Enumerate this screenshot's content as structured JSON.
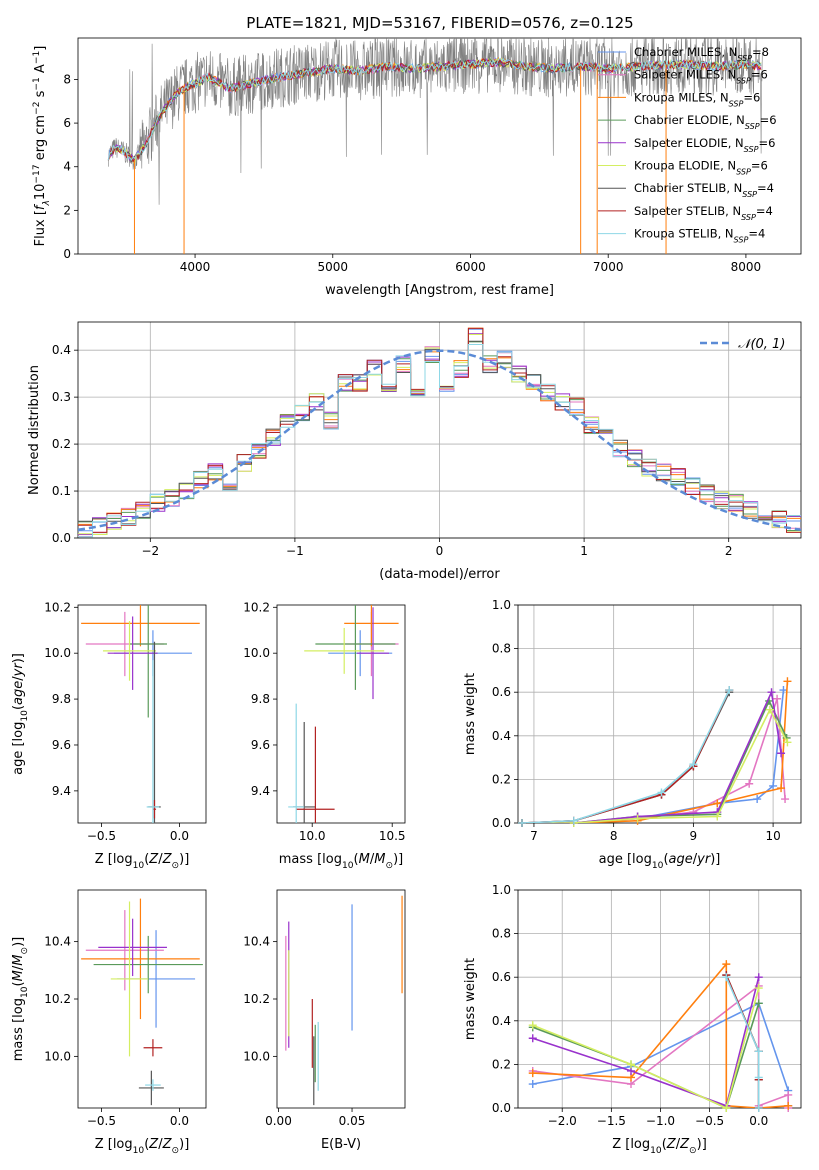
{
  "figure": {
    "title": "PLATE=1821, MJD=53167, FIBERID=0576, z=0.125"
  },
  "colors": {
    "Chabrier MILES": "#6495ed",
    "Salpeter MILES": "#e377c2",
    "Kroupa MILES": "#ff7f0e",
    "Chabrier ELODIE": "#5a9a5a",
    "Salpeter ELODIE": "#9932cc",
    "Kroupa ELODIE": "#d4ee62",
    "Chabrier STELIB": "#555555",
    "Salpeter STELIB": "#b22222",
    "Kroupa STELIB": "#8ed7e6",
    "data": "#808080",
    "normal": "#5b8bd6"
  },
  "chart_data": [
    {
      "id": "spectrum",
      "type": "line",
      "xlabel": "wavelength [Angstrom, rest frame]",
      "ylabel": "Flux [f_λ10^-17 erg cm^-2 s^-1 A^-1]",
      "xlim": [
        3150,
        8400
      ],
      "ylim": [
        0,
        9.9
      ],
      "xticks": [
        4000,
        5000,
        6000,
        7000,
        8000
      ],
      "yticks": [
        0,
        2,
        4,
        6,
        8
      ],
      "grid": false,
      "legend": "top-right",
      "data_continuum": {
        "x": [
          3370,
          3420,
          3480,
          3560,
          3640,
          3700,
          3760,
          3860,
          3950,
          4100,
          4250,
          4400,
          4600,
          4800,
          5000,
          5200,
          5400,
          5600,
          5800,
          6000,
          6200,
          6400,
          6600,
          6800,
          7000,
          7200,
          7500,
          7800,
          8000,
          8120
        ],
        "y": [
          4.5,
          4.9,
          4.7,
          4.3,
          5.0,
          5.8,
          6.5,
          7.3,
          7.7,
          8.1,
          7.6,
          7.8,
          8.1,
          8.3,
          8.5,
          8.4,
          8.6,
          8.5,
          8.6,
          8.7,
          8.8,
          8.6,
          8.5,
          8.6,
          8.5,
          8.6,
          8.7,
          8.6,
          8.7,
          8.6
        ]
      },
      "series": [
        {
          "name": "Chabrier MILES",
          "nssp": "8"
        },
        {
          "name": "Salpeter MILES",
          "nssp": "6"
        },
        {
          "name": "Kroupa MILES",
          "nssp": "6"
        },
        {
          "name": "Chabrier ELODIE",
          "nssp": "6"
        },
        {
          "name": "Salpeter ELODIE",
          "nssp": "6"
        },
        {
          "name": "Kroupa ELODIE",
          "nssp": "6"
        },
        {
          "name": "Chabrier STELIB",
          "nssp": "4"
        },
        {
          "name": "Salpeter STELIB",
          "nssp": "4"
        },
        {
          "name": "Kroupa STELIB",
          "nssp": "4"
        }
      ]
    },
    {
      "id": "residuals",
      "type": "line",
      "xlabel": "(data-model)/error",
      "ylabel": "Normed distribution",
      "xlim": [
        -2.5,
        2.5
      ],
      "ylim": [
        0,
        0.46
      ],
      "xticks": [
        -2,
        -1,
        0,
        1,
        2
      ],
      "yticks": [
        0.0,
        0.1,
        0.2,
        0.3,
        0.4
      ],
      "grid": true,
      "legend": "top-right",
      "legend_label": "𝒩(0, 1)",
      "bin_width": 0.1,
      "bin_centers": [
        -2.45,
        -2.35,
        -2.25,
        -2.15,
        -2.05,
        -1.95,
        -1.85,
        -1.75,
        -1.65,
        -1.55,
        -1.45,
        -1.35,
        -1.25,
        -1.15,
        -1.05,
        -0.95,
        -0.85,
        -0.75,
        -0.65,
        -0.55,
        -0.45,
        -0.35,
        -0.25,
        -0.15,
        -0.05,
        0.05,
        0.15,
        0.25,
        0.35,
        0.45,
        0.55,
        0.65,
        0.75,
        0.85,
        0.95,
        1.05,
        1.15,
        1.25,
        1.35,
        1.45,
        1.55,
        1.65,
        1.75,
        1.85,
        1.95,
        2.05,
        2.15,
        2.25,
        2.35,
        2.45
      ],
      "hist": [
        0.02,
        0.025,
        0.035,
        0.045,
        0.06,
        0.075,
        0.085,
        0.1,
        0.125,
        0.14,
        0.12,
        0.16,
        0.185,
        0.215,
        0.245,
        0.265,
        0.29,
        0.25,
        0.33,
        0.33,
        0.365,
        0.33,
        0.37,
        0.31,
        0.39,
        0.305,
        0.36,
        0.43,
        0.37,
        0.38,
        0.35,
        0.33,
        0.31,
        0.29,
        0.28,
        0.24,
        0.22,
        0.19,
        0.17,
        0.15,
        0.14,
        0.13,
        0.11,
        0.095,
        0.08,
        0.075,
        0.06,
        0.05,
        0.04,
        0.03
      ]
    },
    {
      "id": "age-vs-z",
      "type": "scatter",
      "xlabel": "Z [log10(Z/Z⊙)]",
      "ylabel": "age [log10(age/yr)]",
      "xlim": [
        -0.65,
        0.17
      ],
      "ylim": [
        9.26,
        10.21
      ],
      "xticks": [
        -0.5,
        0.0
      ],
      "yticks": [
        9.4,
        9.6,
        9.8,
        10.0,
        10.2
      ],
      "grid": false,
      "series": [
        {
          "name": "Chabrier MILES",
          "x": -0.17,
          "y": 10.0,
          "xerr": 0.25,
          "yerr": 0.1
        },
        {
          "name": "Salpeter MILES",
          "x": -0.35,
          "y": 10.04,
          "xerr": 0.25,
          "yerr": 0.14
        },
        {
          "name": "Kroupa MILES",
          "x": -0.25,
          "y": 10.13,
          "xerr": 0.38,
          "yerr": 0.1
        },
        {
          "name": "Chabrier ELODIE",
          "x": -0.2,
          "y": 10.04,
          "xerr": 0.12,
          "yerr": 0.32
        },
        {
          "name": "Salpeter ELODIE",
          "x": -0.3,
          "y": 10.0,
          "xerr": 0.16,
          "yerr": 0.16
        },
        {
          "name": "Kroupa ELODIE",
          "x": -0.32,
          "y": 10.01,
          "xerr": 0.17,
          "yerr": 0.13
        },
        {
          "name": "Chabrier STELIB",
          "x": -0.16,
          "y": 9.33,
          "xerr": 0.04,
          "yerr": 0.72
        },
        {
          "name": "Salpeter STELIB",
          "x": -0.16,
          "y": 9.32,
          "xerr": 0.01,
          "yerr": 0.04
        },
        {
          "name": "Kroupa STELIB",
          "x": -0.17,
          "y": 9.33,
          "xerr": 0.04,
          "yerr": 0.64
        }
      ]
    },
    {
      "id": "age-vs-mass",
      "type": "scatter",
      "xlabel": "mass [log10(M/M⊙)]",
      "ylabel": "",
      "xlim": [
        9.78,
        10.58
      ],
      "ylim": [
        9.26,
        10.21
      ],
      "xticks": [
        10.0,
        10.5
      ],
      "yticks": [
        9.4,
        9.6,
        9.8,
        10.0,
        10.2
      ],
      "grid": false,
      "series": [
        {
          "name": "Chabrier MILES",
          "x": 10.3,
          "y": 10.0,
          "xerr": 0.2,
          "yerr": 0.1
        },
        {
          "name": "Salpeter MILES",
          "x": 10.37,
          "y": 10.04,
          "xerr": 0.17,
          "yerr": 0.14
        },
        {
          "name": "Kroupa MILES",
          "x": 10.37,
          "y": 10.13,
          "xerr": 0.17,
          "yerr": 0.1
        },
        {
          "name": "Chabrier ELODIE",
          "x": 10.27,
          "y": 10.04,
          "xerr": 0.25,
          "yerr": 0.2
        },
        {
          "name": "Salpeter ELODIE",
          "x": 10.38,
          "y": 10.0,
          "xerr": 0.1,
          "yerr": 0.2
        },
        {
          "name": "Kroupa ELODIE",
          "x": 10.2,
          "y": 10.01,
          "xerr": 0.25,
          "yerr": 0.1
        },
        {
          "name": "Chabrier STELIB",
          "x": 9.95,
          "y": 9.33,
          "xerr": 0.07,
          "yerr": 0.37
        },
        {
          "name": "Salpeter STELIB",
          "x": 10.02,
          "y": 9.32,
          "xerr": 0.12,
          "yerr": 0.36
        },
        {
          "name": "Kroupa STELIB",
          "x": 9.9,
          "y": 9.33,
          "xerr": 0.05,
          "yerr": 0.45
        }
      ]
    },
    {
      "id": "weight-vs-age",
      "type": "line",
      "xlabel": "age [log10(age/yr)]",
      "ylabel": "mass weight",
      "xlim": [
        6.8,
        10.35
      ],
      "ylim": [
        0,
        1
      ],
      "xticks": [
        7,
        8,
        9,
        10
      ],
      "yticks": [
        0.0,
        0.2,
        0.4,
        0.6,
        0.8,
        1.0
      ],
      "grid": true,
      "series": [
        {
          "name": "Chabrier MILES",
          "x": [
            6.85,
            7.5,
            8.3,
            9.3,
            9.8,
            10.0,
            10.13
          ],
          "y": [
            0.0,
            0.0,
            0.02,
            0.09,
            0.11,
            0.17,
            0.61
          ]
        },
        {
          "name": "Salpeter MILES",
          "x": [
            6.85,
            7.5,
            8.3,
            9.0,
            9.7,
            10.05,
            10.15
          ],
          "y": [
            0.0,
            0.0,
            0.02,
            0.05,
            0.18,
            0.57,
            0.11
          ]
        },
        {
          "name": "Kroupa MILES",
          "x": [
            6.85,
            7.5,
            8.3,
            9.3,
            10.1,
            10.18
          ],
          "y": [
            0.0,
            0.0,
            0.01,
            0.09,
            0.16,
            0.65
          ]
        },
        {
          "name": "Chabrier ELODIE",
          "x": [
            6.85,
            7.5,
            8.3,
            9.3,
            9.95,
            10.17
          ],
          "y": [
            0.0,
            0.0,
            0.03,
            0.04,
            0.56,
            0.39
          ]
        },
        {
          "name": "Salpeter ELODIE",
          "x": [
            6.85,
            7.5,
            8.3,
            9.3,
            9.98,
            10.1
          ],
          "y": [
            0.0,
            0.0,
            0.03,
            0.05,
            0.6,
            0.32
          ]
        },
        {
          "name": "Kroupa ELODIE",
          "x": [
            6.85,
            7.5,
            8.3,
            9.3,
            9.96,
            10.18
          ],
          "y": [
            0.0,
            0.0,
            0.02,
            0.03,
            0.52,
            0.37
          ]
        },
        {
          "name": "Chabrier STELIB",
          "x": [
            6.85,
            7.5,
            8.6,
            9.0,
            9.45
          ],
          "y": [
            0.0,
            0.01,
            0.13,
            0.26,
            0.6
          ]
        },
        {
          "name": "Salpeter STELIB",
          "x": [
            6.85,
            7.5,
            8.6,
            9.0,
            9.45
          ],
          "y": [
            0.0,
            0.01,
            0.13,
            0.26,
            0.61
          ]
        },
        {
          "name": "Kroupa STELIB",
          "x": [
            6.85,
            7.5,
            8.6,
            9.0,
            9.45
          ],
          "y": [
            0.0,
            0.01,
            0.14,
            0.27,
            0.61
          ]
        }
      ]
    },
    {
      "id": "mass-vs-z",
      "type": "scatter",
      "xlabel": "Z [log10(Z/Z⊙)]",
      "ylabel": "mass [log10(M/M⊙)]",
      "xlim": [
        -0.65,
        0.17
      ],
      "ylim": [
        9.82,
        10.58
      ],
      "xticks": [
        -0.5,
        0.0
      ],
      "yticks": [
        10.0,
        10.2,
        10.4
      ],
      "grid": false,
      "series": [
        {
          "name": "Chabrier MILES",
          "x": -0.15,
          "y": 10.27,
          "xerr": 0.25,
          "yerr": 0.17
        },
        {
          "name": "Salpeter MILES",
          "x": -0.35,
          "y": 10.37,
          "xerr": 0.25,
          "yerr": 0.14
        },
        {
          "name": "Kroupa MILES",
          "x": -0.25,
          "y": 10.34,
          "xerr": 0.38,
          "yerr": 0.21
        },
        {
          "name": "Chabrier ELODIE",
          "x": -0.2,
          "y": 10.32,
          "xerr": 0.35,
          "yerr": 0.1
        },
        {
          "name": "Salpeter ELODIE",
          "x": -0.3,
          "y": 10.38,
          "xerr": 0.22,
          "yerr": 0.1
        },
        {
          "name": "Kroupa ELODIE",
          "x": -0.32,
          "y": 10.27,
          "xerr": 0.12,
          "yerr": 0.27
        },
        {
          "name": "Chabrier STELIB",
          "x": -0.18,
          "y": 9.89,
          "xerr": 0.08,
          "yerr": 0.06
        },
        {
          "name": "Salpeter STELIB",
          "x": -0.17,
          "y": 10.03,
          "xerr": 0.06,
          "yerr": 0.03
        },
        {
          "name": "Kroupa STELIB",
          "x": -0.17,
          "y": 9.9,
          "xerr": 0.05,
          "yerr": 0.02
        }
      ]
    },
    {
      "id": "mass-vs-ebv",
      "type": "scatter",
      "xlabel": "E(B-V)",
      "ylabel": "",
      "xlim": [
        -0.001,
        0.086
      ],
      "ylim": [
        9.82,
        10.58
      ],
      "xticks": [
        0.0,
        0.05
      ],
      "yticks": [
        10.0,
        10.2,
        10.4
      ],
      "grid": false,
      "series": [
        {
          "name": "Chabrier MILES",
          "x": 0.05,
          "y": 10.31,
          "yerr": 0.22
        },
        {
          "name": "Salpeter MILES",
          "x": 0.005,
          "y": 10.22,
          "yerr": 0.2
        },
        {
          "name": "Kroupa MILES",
          "x": 0.084,
          "y": 10.39,
          "yerr": 0.17
        },
        {
          "name": "Chabrier ELODIE",
          "x": 0.025,
          "y": 10.01,
          "yerr": 0.1
        },
        {
          "name": "Salpeter ELODIE",
          "x": 0.007,
          "y": 10.25,
          "yerr": 0.22
        },
        {
          "name": "Kroupa ELODIE",
          "x": 0.007,
          "y": 10.22,
          "yerr": 0.15
        },
        {
          "name": "Chabrier STELIB",
          "x": 0.024,
          "y": 9.95,
          "yerr": 0.12
        },
        {
          "name": "Salpeter STELIB",
          "x": 0.023,
          "y": 10.08,
          "yerr": 0.12
        },
        {
          "name": "Kroupa STELIB",
          "x": 0.027,
          "y": 10.0,
          "yerr": 0.12
        }
      ]
    },
    {
      "id": "weight-vs-z",
      "type": "line",
      "xlabel": "Z [log10(Z/Z⊙)]",
      "ylabel": "mass weight",
      "xlim": [
        -2.45,
        0.43
      ],
      "ylim": [
        0,
        1
      ],
      "xticks": [
        -2.0,
        -1.5,
        -1.0,
        -0.5,
        0.0
      ],
      "yticks": [
        0.0,
        0.2,
        0.4,
        0.6,
        0.8,
        1.0
      ],
      "grid": true,
      "series": [
        {
          "name": "Chabrier MILES",
          "x": [
            -2.3,
            -1.3,
            0.0,
            0.3,
            0.3
          ],
          "y": [
            0.11,
            0.19,
            0.48,
            0.08,
            0.01
          ]
        },
        {
          "name": "Salpeter MILES",
          "x": [
            -2.3,
            -1.3,
            0.0,
            0.0,
            0.3,
            0.3
          ],
          "y": [
            0.17,
            0.11,
            0.56,
            0.01,
            0.06,
            0.0
          ]
        },
        {
          "name": "Kroupa MILES",
          "x": [
            -2.3,
            -1.3,
            -0.33,
            -0.33,
            0.0,
            0.3
          ],
          "y": [
            0.16,
            0.14,
            0.66,
            0.01,
            0.0,
            0.01
          ]
        },
        {
          "name": "Chabrier ELODIE",
          "x": [
            -2.3,
            -1.3,
            -0.33,
            0.0
          ],
          "y": [
            0.37,
            0.2,
            0.0,
            0.48
          ]
        },
        {
          "name": "Salpeter ELODIE",
          "x": [
            -2.3,
            -1.3,
            -0.33,
            0.0
          ],
          "y": [
            0.32,
            0.17,
            0.01,
            0.6
          ]
        },
        {
          "name": "Kroupa ELODIE",
          "x": [
            -2.3,
            -1.3,
            -0.33,
            0.0
          ],
          "y": [
            0.38,
            0.2,
            0.0,
            0.55
          ]
        },
        {
          "name": "Chabrier STELIB",
          "x": [
            -0.33,
            0.0,
            0.0,
            0.0
          ],
          "y": [
            0.61,
            0.26,
            0.13,
            0.0
          ]
        },
        {
          "name": "Salpeter STELIB",
          "x": [
            -0.33,
            0.0,
            0.0,
            0.0
          ],
          "y": [
            0.61,
            0.26,
            0.13,
            0.0
          ]
        },
        {
          "name": "Kroupa STELIB",
          "x": [
            -0.33,
            0.0,
            0.0,
            0.0
          ],
          "y": [
            0.6,
            0.26,
            0.14,
            0.0
          ]
        }
      ]
    }
  ]
}
